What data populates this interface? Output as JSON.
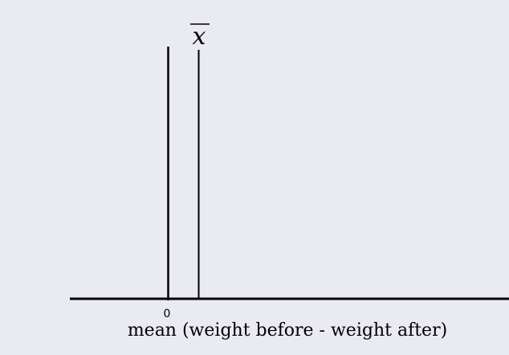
{
  "chart_data": {
    "type": "diagram",
    "title": "",
    "xlabel": "mean (weight before - weight after)",
    "x_ticks": [
      "0"
    ],
    "annotations": [
      {
        "label": "x̄",
        "description": "vertical line marking the sample mean, right of zero"
      }
    ],
    "vertical_lines": [
      "zero",
      "sample-mean"
    ],
    "background_color": "#eaeaf2",
    "line_color": "#000000",
    "grid": false
  }
}
